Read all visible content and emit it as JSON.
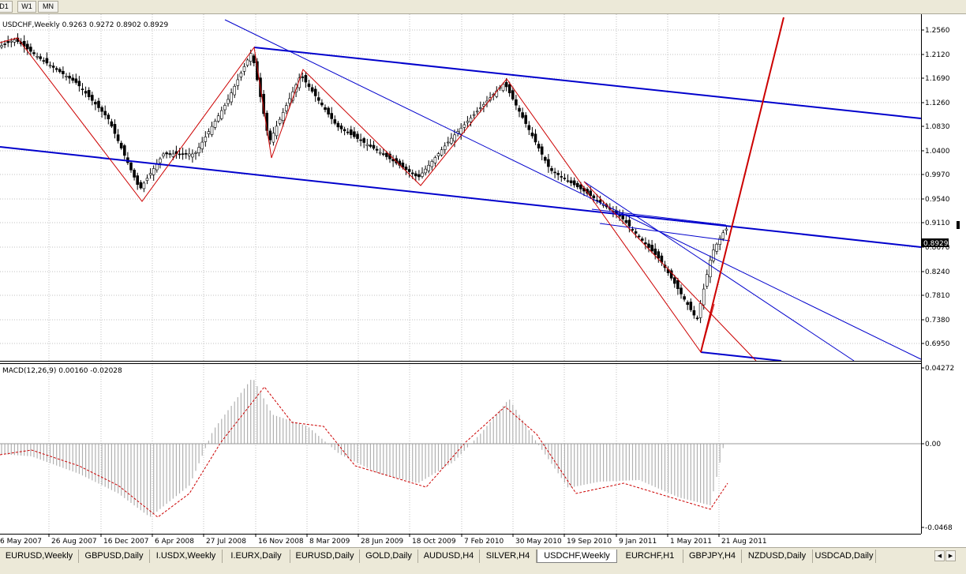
{
  "toolbar": {
    "buttons": [
      "D1",
      "W1",
      "MN"
    ]
  },
  "main_chart": {
    "header": "USDCHF,Weekly  0.9263 0.9272 0.8902 0.8929",
    "price_labels": [
      "1.2560",
      "1.2120",
      "1.1690",
      "1.1260",
      "1.0830",
      "1.0400",
      "0.9970",
      "0.9540",
      "0.9110",
      "0.8670",
      "0.8240",
      "0.7810",
      "0.7380",
      "0.6950"
    ],
    "current_price": "0.8929",
    "price_range": [
      0.695,
      1.256
    ]
  },
  "macd": {
    "header": "MACD(12,26,9) 0.00160 -0.02028",
    "axis_labels": [
      "0.04272",
      "0.00",
      "-0.0468"
    ]
  },
  "time_labels": [
    "6 May 2007",
    "26 Aug 2007",
    "16 Dec 2007",
    "6 Apr 2008",
    "27 Jul 2008",
    "16 Nov 2008",
    "8 Mar 2009",
    "28 Jun 2009",
    "18 Oct 2009",
    "7 Feb 2010",
    "30 May 2010",
    "19 Sep 2010",
    "9 Jan 2011",
    "1 May 2011",
    "21 Aug 2011"
  ],
  "tabs": [
    "EURUSD,Weekly",
    "GBPUSD,Daily",
    "I.USDX,Weekly",
    "I.EURX,Daily",
    "EURUSD,Daily",
    "GOLD,Daily",
    "AUDUSD,H4",
    "SILVER,H4",
    "USDCHF,Weekly",
    "EURCHF,H1",
    "GBPJPY,H4",
    "NZDUSD,Daily",
    "USDCAD,Daily"
  ],
  "active_tab": "USDCHF,Weekly",
  "colors": {
    "bull_candle": "#ffffff",
    "bear_candle": "#000000",
    "channel_line": "#0000cc",
    "zigzag": "#cc0000",
    "grid": "#c0c0c0"
  }
}
